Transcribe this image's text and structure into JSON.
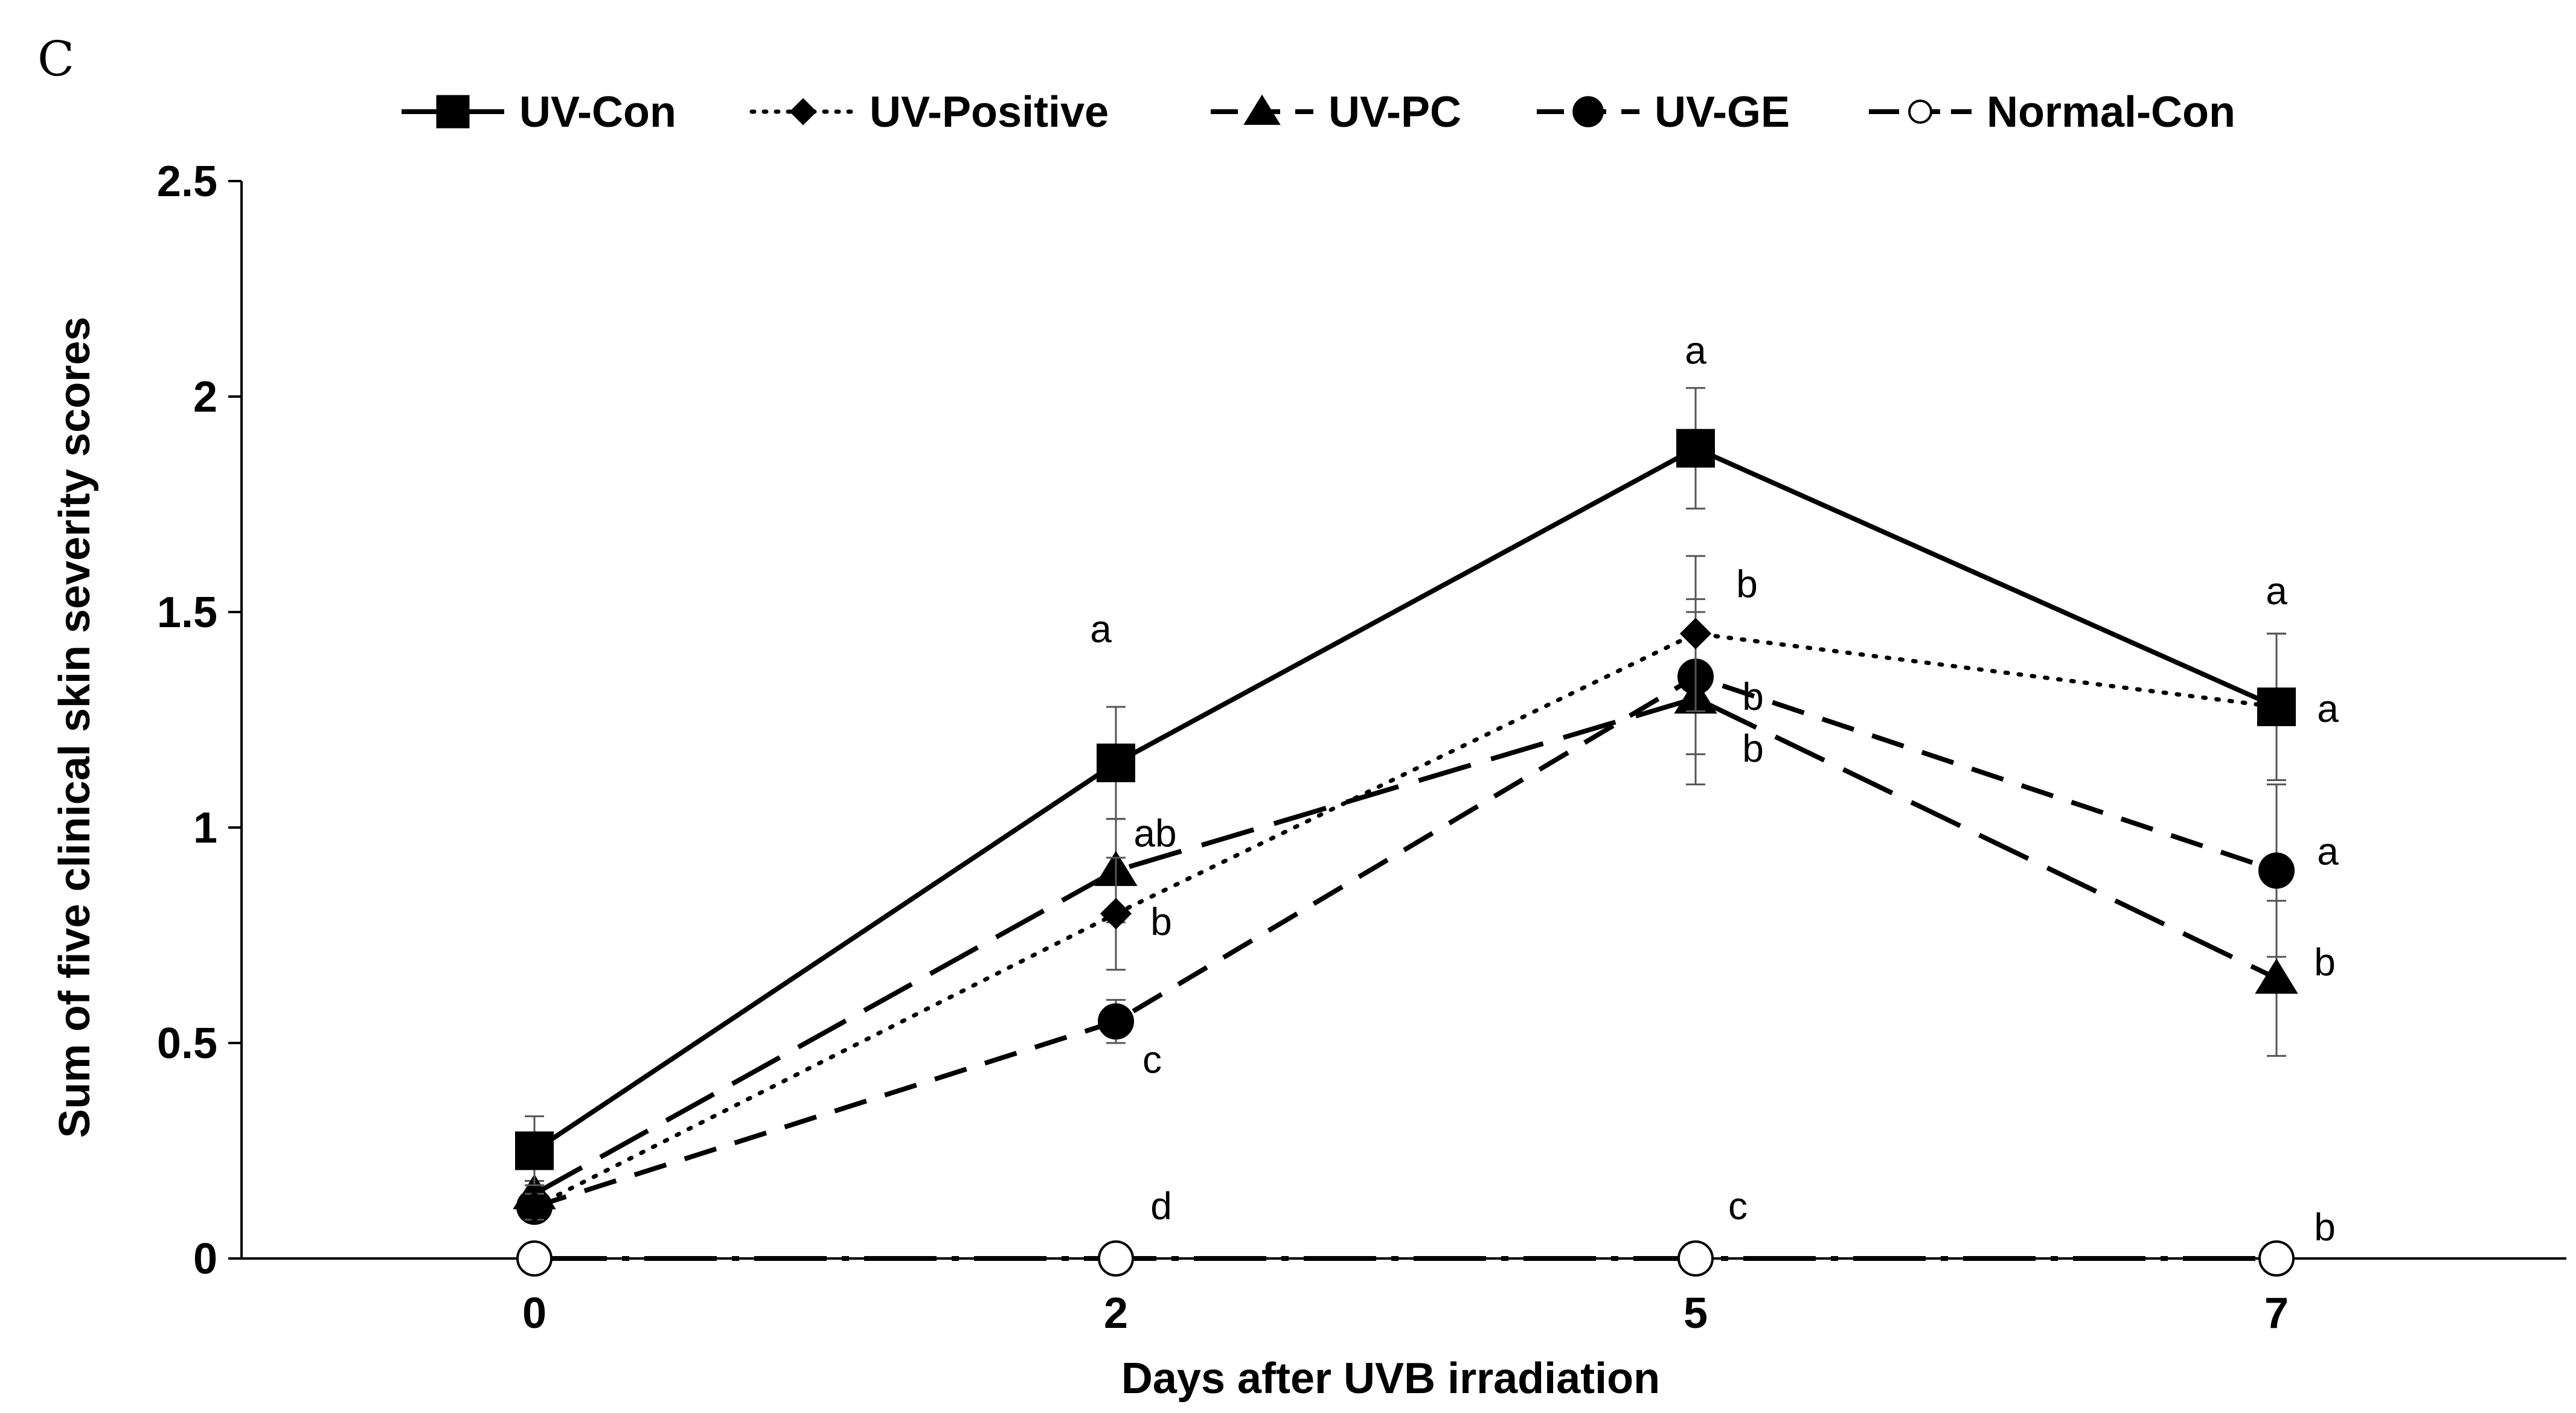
{
  "panel_label": "C",
  "chart_data": {
    "type": "line",
    "title": "",
    "xlabel": "Days after UVB irradiation",
    "ylabel": "Sum of five clinical skin severity scores",
    "categories": [
      "0",
      "2",
      "5",
      "7"
    ],
    "ylim": [
      0,
      2.5
    ],
    "yticks": [
      0,
      0.5,
      1,
      1.5,
      2,
      2.5
    ],
    "ytick_labels": [
      "0",
      "0.5",
      "1",
      "1.5",
      "2",
      "2.5"
    ],
    "grid": false,
    "legend_position": "top",
    "series": [
      {
        "name": "UV-Con",
        "marker": "square",
        "filled": true,
        "dash": "solid",
        "values": [
          0.25,
          1.15,
          1.88,
          1.28
        ],
        "errors": [
          0.08,
          0.13,
          0.14,
          0.17
        ],
        "labels": [
          "",
          "a",
          "a",
          "a"
        ]
      },
      {
        "name": "UV-Positive",
        "marker": "diamond",
        "filled": true,
        "dash": "dotted",
        "values": [
          0.12,
          0.8,
          1.45,
          1.28
        ],
        "errors": [
          0.03,
          0.13,
          0.18,
          0.17
        ],
        "labels": [
          "",
          "b",
          "b",
          "a"
        ]
      },
      {
        "name": "UV-PC",
        "marker": "triangle",
        "filled": true,
        "dash": "longdash",
        "values": [
          0.15,
          0.9,
          1.3,
          0.65
        ],
        "errors": [
          0.03,
          0.12,
          0.2,
          0.18
        ],
        "labels": [
          "",
          "ab",
          "b",
          "b"
        ]
      },
      {
        "name": "UV-GE",
        "marker": "circle",
        "filled": true,
        "dash": "dash",
        "values": [
          0.12,
          0.55,
          1.35,
          0.9
        ],
        "errors": [
          0.03,
          0.05,
          0.18,
          0.2
        ],
        "labels": [
          "",
          "c",
          "b",
          "a"
        ]
      },
      {
        "name": "Normal-Con",
        "marker": "circle",
        "filled": false,
        "dash": "dashdot",
        "values": [
          0,
          0,
          0,
          0
        ],
        "errors": [
          0,
          0,
          0,
          0
        ],
        "labels": [
          "",
          "d",
          "c",
          "b"
        ]
      }
    ]
  }
}
